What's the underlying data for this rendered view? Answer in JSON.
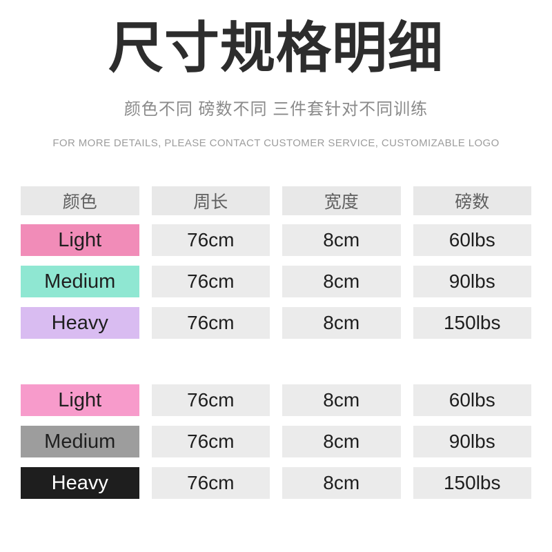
{
  "page": {
    "title": "尺寸规格明细",
    "subtitle": "颜色不同 磅数不同 三件套针对不同训练",
    "note": "FOR MORE DETAILS, PLEASE CONTACT CUSTOMER SERVICE, CUSTOMIZABLE LOGO"
  },
  "colors": {
    "title_text": "#2d2d2d",
    "subtitle_text": "#8a8a8a",
    "note_text": "#9d9d9d",
    "header_cell_bg": "#e8e8e8",
    "data_cell_bg": "#ebebeb"
  },
  "table": {
    "headers": [
      "颜色",
      "周长",
      "宽度",
      "磅数"
    ],
    "groups": [
      {
        "rows": [
          {
            "label": "Light",
            "bg": "#f18cb8",
            "fg": "#1f1f1f",
            "circumference": "76cm",
            "width": "8cm",
            "pounds": "60lbs"
          },
          {
            "label": "Medium",
            "bg": "#8fe7d2",
            "fg": "#1f1f1f",
            "circumference": "76cm",
            "width": "8cm",
            "pounds": "90lbs"
          },
          {
            "label": "Heavy",
            "bg": "#d9bcf1",
            "fg": "#1f1f1f",
            "circumference": "76cm",
            "width": "8cm",
            "pounds": "150lbs"
          }
        ]
      },
      {
        "rows": [
          {
            "label": "Light",
            "bg": "#f79bcb",
            "fg": "#1f1f1f",
            "circumference": "76cm",
            "width": "8cm",
            "pounds": "60lbs"
          },
          {
            "label": "Medium",
            "bg": "#9d9d9d",
            "fg": "#1f1f1f",
            "circumference": "76cm",
            "width": "8cm",
            "pounds": "90lbs"
          },
          {
            "label": "Heavy",
            "bg": "#1e1e1e",
            "fg": "#ffffff",
            "circumference": "76cm",
            "width": "8cm",
            "pounds": "150lbs"
          }
        ]
      }
    ]
  }
}
